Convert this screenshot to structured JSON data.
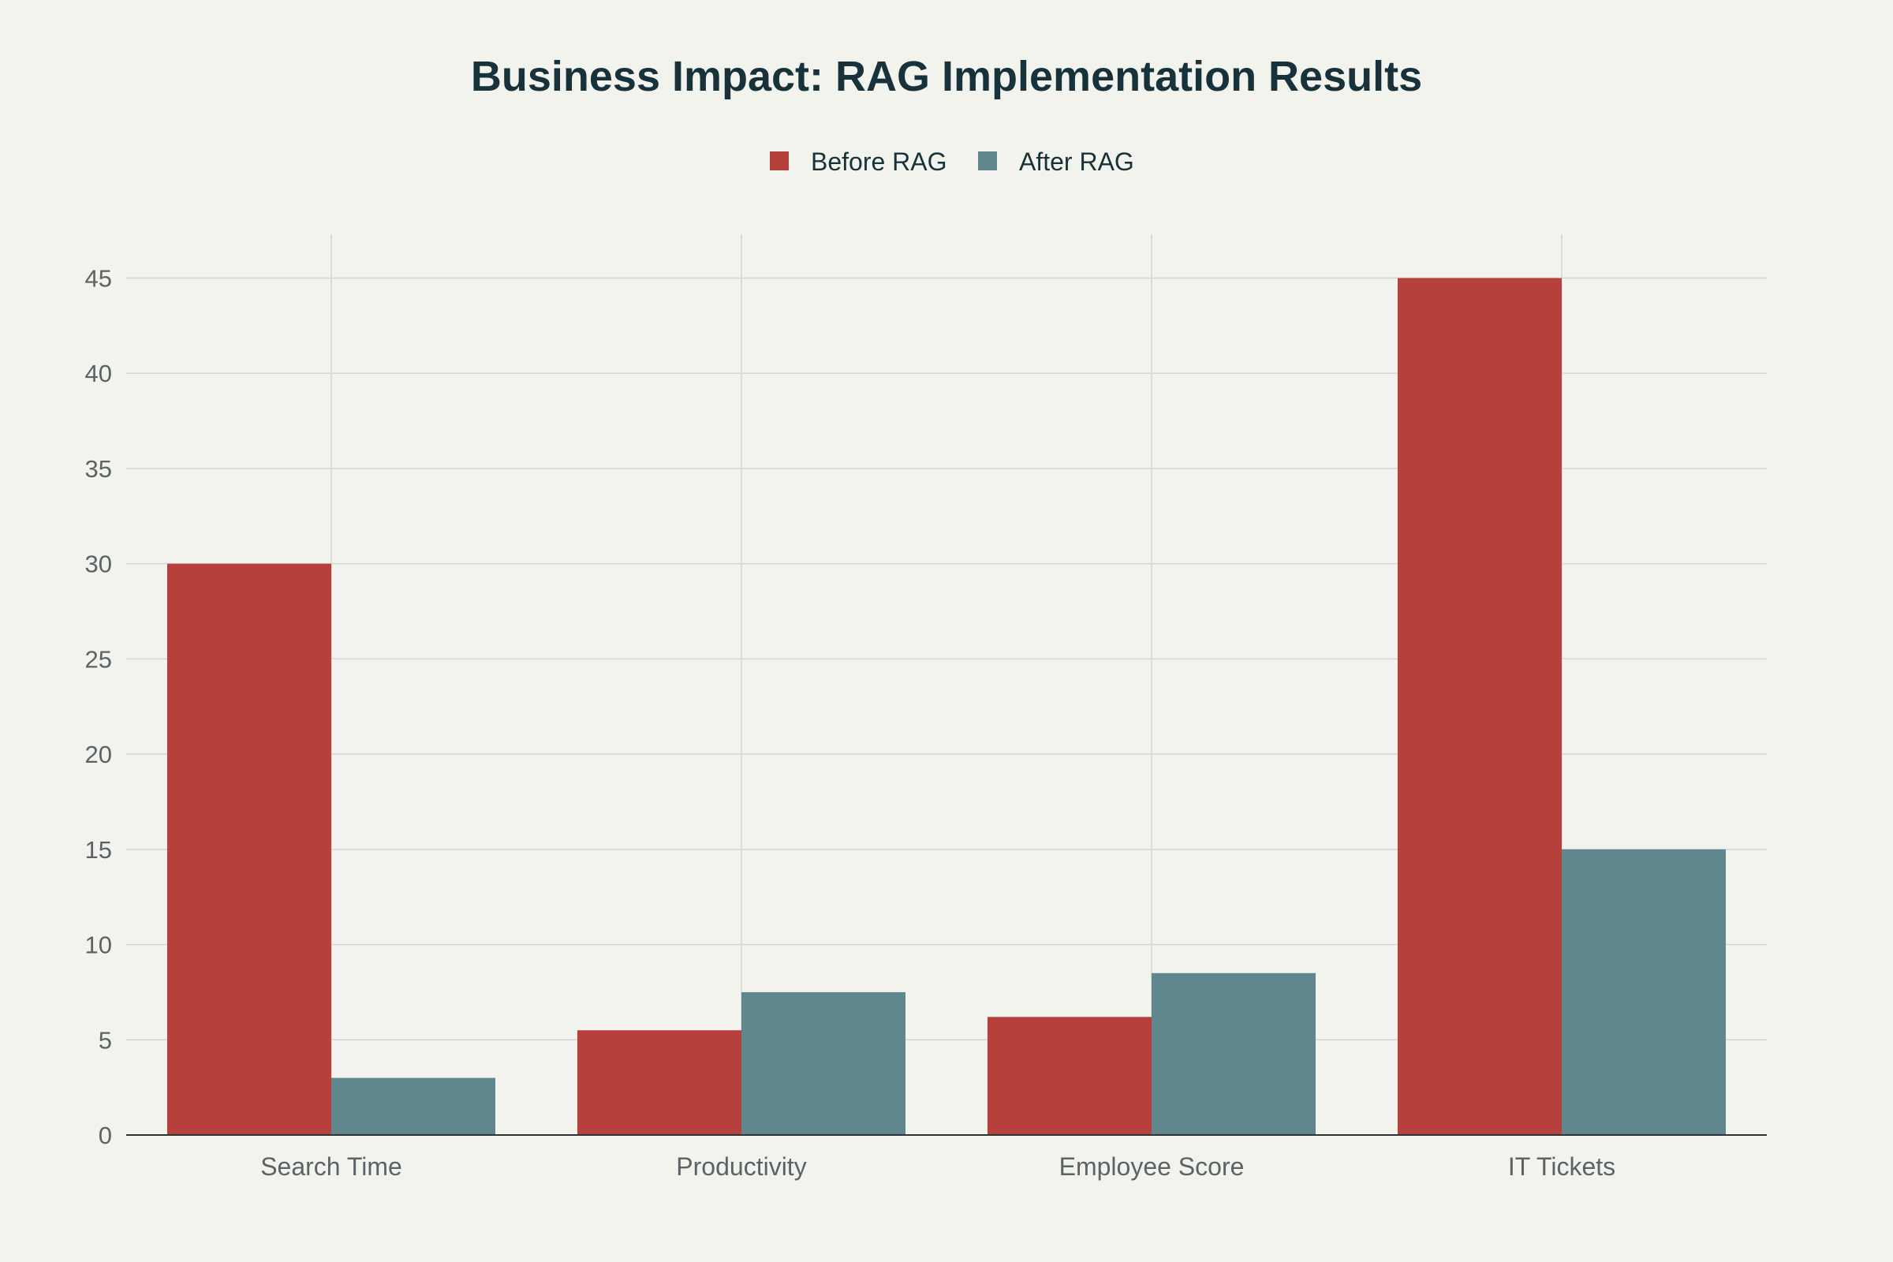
{
  "chart_data": {
    "type": "bar",
    "title": "Business Impact: RAG Implementation Results",
    "xlabel": "",
    "ylabel": "",
    "categories": [
      "Search Time",
      "Productivity",
      "Employee Score",
      "IT Tickets"
    ],
    "series": [
      {
        "name": "Before RAG",
        "color": "#b5403c",
        "values": [
          30,
          5.5,
          6.2,
          45
        ]
      },
      {
        "name": "After RAG",
        "color": "#5f878d",
        "values": [
          3,
          7.5,
          8.5,
          15
        ]
      }
    ],
    "ylim": [
      0,
      47.3
    ],
    "yticks": [
      0,
      5,
      10,
      15,
      20,
      25,
      30,
      35,
      40,
      45
    ],
    "grid": true,
    "legend_position": "top-center"
  }
}
